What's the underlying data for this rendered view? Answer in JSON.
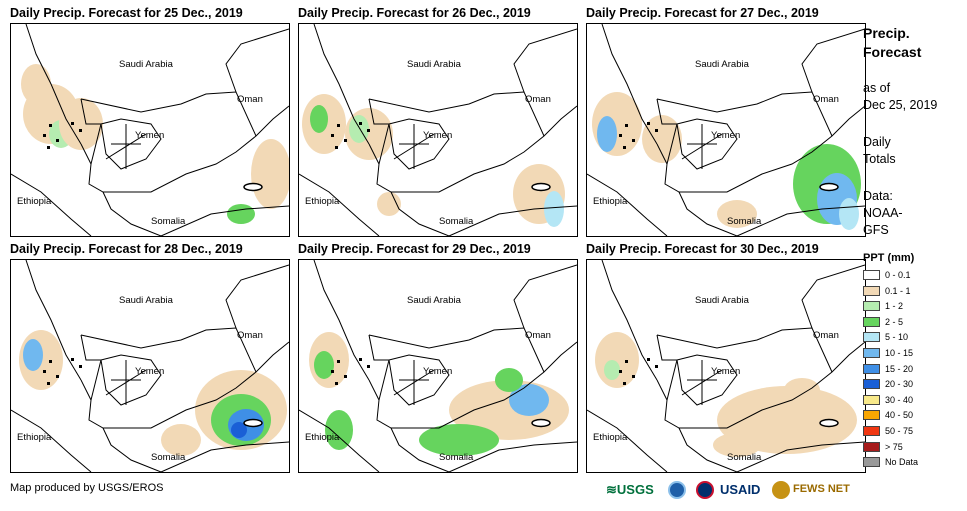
{
  "panels": [
    {
      "title": "Daily Precip. Forecast for 25 Dec., 2019"
    },
    {
      "title": "Daily Precip. Forecast for 26 Dec., 2019"
    },
    {
      "title": "Daily Precip. Forecast for 27 Dec., 2019"
    },
    {
      "title": "Daily Precip. Forecast for 28 Dec., 2019"
    },
    {
      "title": "Daily Precip. Forecast for 29 Dec., 2019"
    },
    {
      "title": "Daily Precip. Forecast for 30 Dec., 2019"
    }
  ],
  "map_labels": {
    "saudi": "Saudi Arabia",
    "oman": "Oman",
    "yemen": "Yemen",
    "ethiopia": "Ethiopia",
    "somalia": "Somalia"
  },
  "sidebar": {
    "heading_line1": "Precip.",
    "heading_line2": "Forecast",
    "asof_line1": "as of",
    "asof_line2": "Dec 25, 2019",
    "daily_line1": "Daily",
    "daily_line2": "Totals",
    "data_line1": "Data:",
    "data_line2": "NOAA-",
    "data_line3": "GFS"
  },
  "legend": {
    "title": "PPT (mm)",
    "items": [
      {
        "label": "0 - 0.1",
        "color": "#ffffff"
      },
      {
        "label": "0.1 - 1",
        "color": "#f2d9b6"
      },
      {
        "label": "1 - 2",
        "color": "#b5ecb0"
      },
      {
        "label": "2 - 5",
        "color": "#66d45e"
      },
      {
        "label": "5 - 10",
        "color": "#b4e6f5"
      },
      {
        "label": "10 - 15",
        "color": "#70b8ef"
      },
      {
        "label": "15 - 20",
        "color": "#3f8fe6"
      },
      {
        "label": "20 - 30",
        "color": "#1a5fd6"
      },
      {
        "label": "30 - 40",
        "color": "#f8e98a"
      },
      {
        "label": "40 - 50",
        "color": "#f9a602"
      },
      {
        "label": "50 - 75",
        "color": "#f03712"
      },
      {
        "label": "> 75",
        "color": "#a61b1b"
      },
      {
        "label": "No Data",
        "color": "#999999"
      }
    ]
  },
  "footer": {
    "credit": "Map produced by USGS/EROS",
    "logo_usgs": "USGS",
    "logo_usaid": "USAID",
    "logo_fews": "FEWS NET"
  }
}
